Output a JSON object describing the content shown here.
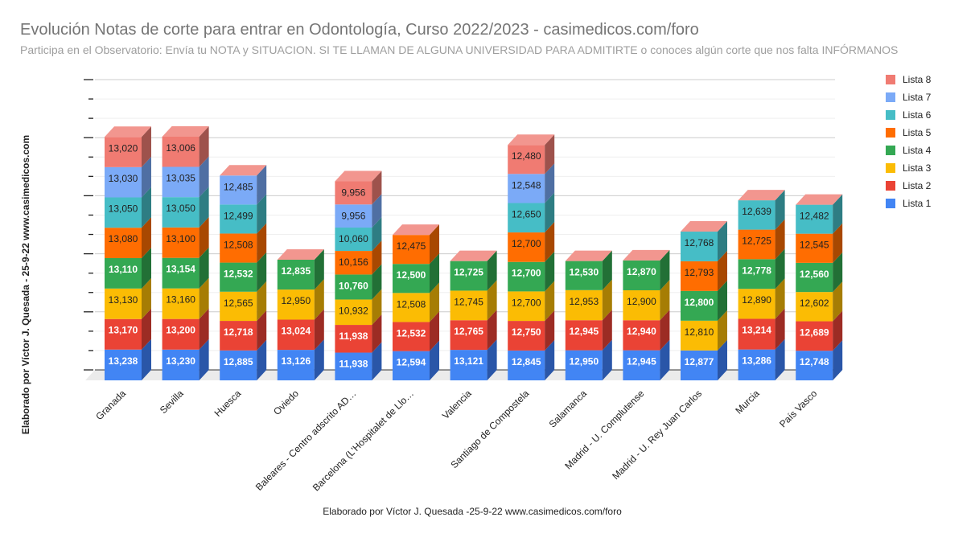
{
  "chart_data": {
    "type": "bar",
    "stacked": true,
    "three_d": true,
    "title": "Evolución Notas de corte para entrar en Odontología, Curso 2022/2023 - casimedicos.com/foro",
    "subtitle": "Participa en el Observatorio: Envía tu NOTA y SITUACION. SI TE LLAMAN DE ALGUNA UNIVERSIDAD PARA ADMITIRTE o conoces algún corte que nos falta INFÓRMANOS",
    "xlabel": "Elaborado por Víctor J. Quesada -25-9-22  www.casimedicos.com/foro",
    "ylabel": "Elaborado por Víctor J. Quesada - 25-9-22  www.casimedicos.com",
    "ylim": [
      0,
      125
    ],
    "grid": true,
    "legend_position": "right",
    "categories": [
      "Granada",
      "Sevilla",
      "Huesca",
      "Oviedo",
      "Baleares - Centro adscrito AD…",
      "Barcelona (L'Hospitalet de Llo…",
      "Valencia",
      "Santiago de Compostela",
      "Salamanca",
      "Madrid - U. Complutense",
      "Madrid - U. Rey Juan Carlos",
      "Murcia",
      "País Vasco"
    ],
    "series": [
      {
        "name": "Lista 1",
        "color": "#4285f4",
        "side": "#2a56a8",
        "label_color": "#ffffff",
        "values": [
          13.238,
          13.23,
          12.885,
          13.126,
          11.938,
          12.594,
          13.121,
          12.845,
          12.95,
          12.945,
          12.877,
          13.286,
          12.748
        ]
      },
      {
        "name": "Lista 2",
        "color": "#ea4335",
        "side": "#9c2c24",
        "label_color": "#ffffff",
        "values": [
          13.17,
          13.2,
          12.718,
          13.024,
          11.938,
          12.532,
          12.765,
          12.75,
          12.945,
          12.94,
          null,
          13.214,
          12.689
        ]
      },
      {
        "name": "Lista 3",
        "color": "#fbbc04",
        "side": "#a67d04",
        "label_color": "#222222",
        "values": [
          13.13,
          13.16,
          12.565,
          12.95,
          10.932,
          12.508,
          12.745,
          12.7,
          12.953,
          12.9,
          12.81,
          12.89,
          12.602
        ]
      },
      {
        "name": "Lista 4",
        "color": "#34a853",
        "side": "#227036",
        "label_color": "#ffffff",
        "values": [
          13.11,
          13.154,
          12.532,
          12.835,
          10.76,
          12.5,
          12.725,
          12.7,
          12.53,
          12.87,
          12.8,
          12.778,
          12.56
        ]
      },
      {
        "name": "Lista 5",
        "color": "#ff6d01",
        "side": "#a84801",
        "label_color": "#222222",
        "values": [
          13.08,
          13.1,
          12.508,
          null,
          10.156,
          12.475,
          null,
          12.7,
          null,
          null,
          12.793,
          12.725,
          12.545
        ]
      },
      {
        "name": "Lista 6",
        "color": "#46bdc6",
        "side": "#2e7d83",
        "label_color": "#222222",
        "values": [
          13.05,
          13.05,
          12.499,
          null,
          10.06,
          null,
          null,
          12.65,
          null,
          null,
          12.768,
          12.639,
          12.482
        ]
      },
      {
        "name": "Lista 7",
        "color": "#7baaf7",
        "side": "#4f6fa3",
        "label_color": "#222222",
        "values": [
          13.03,
          13.035,
          12.485,
          null,
          9.956,
          null,
          null,
          12.548,
          null,
          null,
          null,
          null,
          null
        ]
      },
      {
        "name": "Lista 8",
        "color": "#f07b72",
        "side": "#9e524c",
        "label_color": "#222222",
        "values": [
          13.02,
          13.006,
          null,
          null,
          9.956,
          null,
          null,
          12.48,
          null,
          null,
          null,
          null,
          null
        ]
      }
    ],
    "top_face_color": "#f2968f"
  }
}
